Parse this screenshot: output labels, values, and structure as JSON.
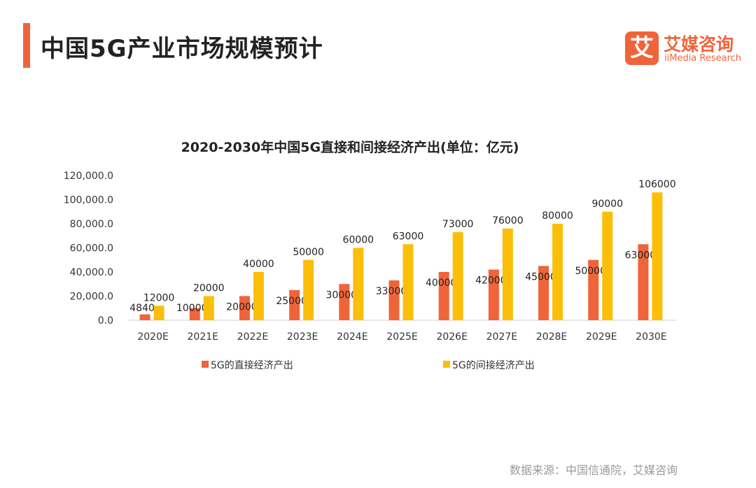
{
  "header": {
    "title": "中国5G产业市场规模预计",
    "logo_mark": "艾",
    "logo_cn": "艾媒咨询",
    "logo_en": "iiMedia Research"
  },
  "source": "数据来源：中国信通院，艾媒咨询",
  "colors": {
    "accent": "#f0643a",
    "direct": "#f0643a",
    "indirect": "#fbbf0a"
  },
  "chart_data": {
    "type": "bar",
    "title": "2020-2030年中国5G直接和间接经济产出(单位：亿元)",
    "categories": [
      "2020E",
      "2021E",
      "2022E",
      "2023E",
      "2024E",
      "2025E",
      "2026E",
      "2027E",
      "2028E",
      "2029E",
      "2030E"
    ],
    "series": [
      {
        "name": "5G的直接经济产出",
        "values": [
          4840,
          10000,
          20000,
          25000,
          30000,
          33000,
          40000,
          42000,
          45000,
          50000,
          63000
        ]
      },
      {
        "name": "5G的间接经济产出",
        "values": [
          12000,
          20000,
          40000,
          50000,
          60000,
          63000,
          73000,
          76000,
          80000,
          90000,
          106000
        ]
      }
    ],
    "yticks": [
      "0.0",
      "20,000.0",
      "40,000.0",
      "60,000.0",
      "80,000.0",
      "100,000.0",
      "120,000.0"
    ],
    "ylim": [
      0,
      120000
    ],
    "legend": "bottom",
    "grid": false
  }
}
